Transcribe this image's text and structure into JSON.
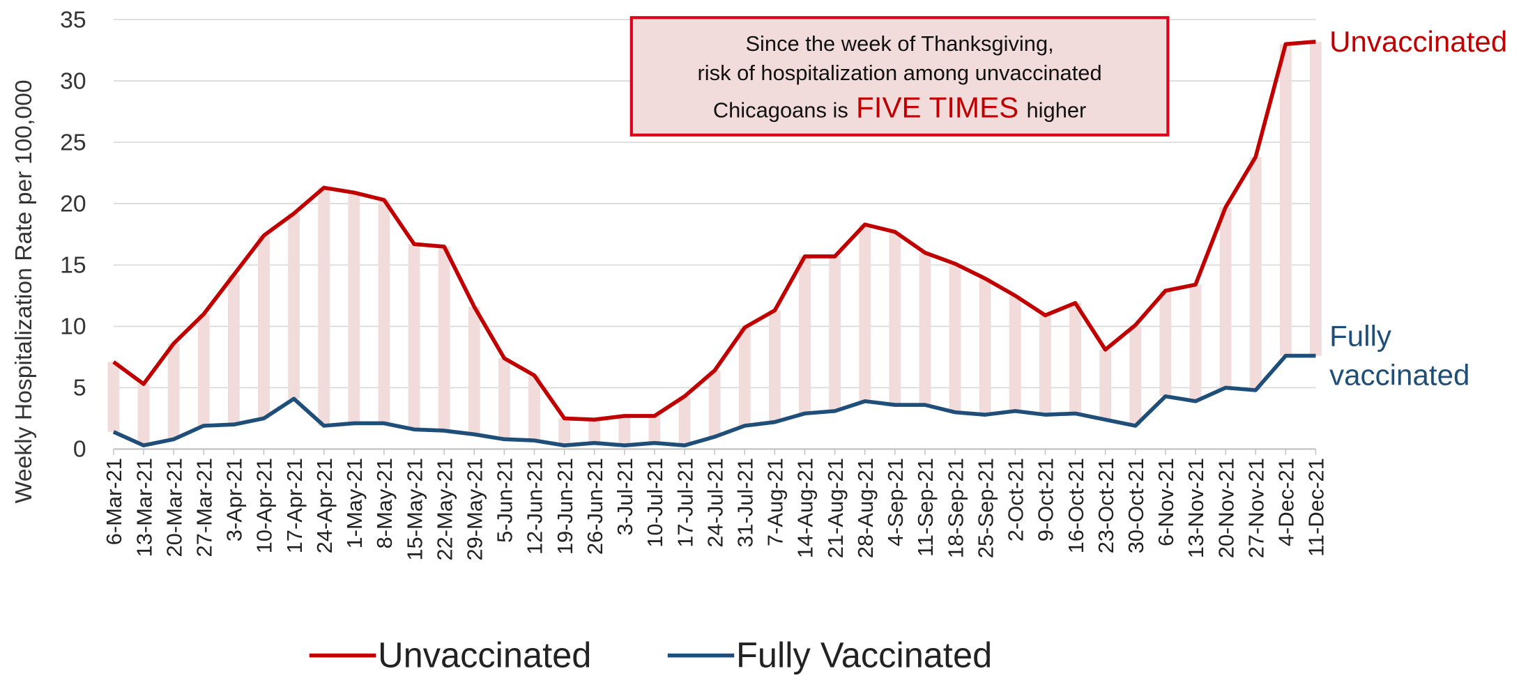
{
  "chart_data": {
    "type": "line",
    "y_axis_label": "Weekly Hospitalization Rate per 100,000",
    "categories": [
      "6-Mar-21",
      "13-Mar-21",
      "20-Mar-21",
      "27-Mar-21",
      "3-Apr-21",
      "10-Apr-21",
      "17-Apr-21",
      "24-Apr-21",
      "1-May-21",
      "8-May-21",
      "15-May-21",
      "22-May-21",
      "29-May-21",
      "5-Jun-21",
      "12-Jun-21",
      "19-Jun-21",
      "26-Jun-21",
      "3-Jul-21",
      "10-Jul-21",
      "17-Jul-21",
      "24-Jul-21",
      "31-Jul-21",
      "7-Aug-21",
      "14-Aug-21",
      "21-Aug-21",
      "28-Aug-21",
      "4-Sep-21",
      "11-Sep-21",
      "18-Sep-21",
      "25-Sep-21",
      "2-Oct-21",
      "9-Oct-21",
      "16-Oct-21",
      "23-Oct-21",
      "30-Oct-21",
      "6-Nov-21",
      "13-Nov-21",
      "20-Nov-21",
      "27-Nov-21",
      "4-Dec-21",
      "11-Dec-21"
    ],
    "series": [
      {
        "name": "Unvaccinated",
        "color": "#c00000",
        "end_label_lines": [
          "Unvaccinated"
        ],
        "values": [
          7.1,
          5.3,
          8.6,
          11.0,
          14.2,
          17.4,
          19.2,
          21.3,
          20.9,
          20.3,
          16.7,
          16.5,
          11.6,
          7.4,
          6.0,
          2.5,
          2.4,
          2.7,
          2.7,
          4.3,
          6.4,
          9.9,
          11.3,
          15.7,
          15.7,
          18.3,
          17.7,
          16.0,
          15.1,
          13.9,
          12.5,
          10.9,
          11.9,
          8.1,
          10.1,
          12.9,
          13.4,
          19.7,
          23.8,
          33.0,
          33.2
        ]
      },
      {
        "name": "Fully Vaccinated",
        "color": "#1f4e79",
        "end_label_lines": [
          "Fully",
          "vaccinated"
        ],
        "values": [
          1.4,
          0.3,
          0.8,
          1.9,
          2.0,
          2.5,
          4.1,
          1.9,
          2.1,
          2.1,
          1.6,
          1.5,
          1.2,
          0.8,
          0.7,
          0.3,
          0.5,
          0.3,
          0.5,
          0.3,
          1.0,
          1.9,
          2.2,
          2.9,
          3.1,
          3.9,
          3.6,
          3.6,
          3.0,
          2.8,
          3.1,
          2.8,
          2.9,
          2.4,
          1.9,
          4.3,
          3.9,
          5.0,
          4.8,
          7.6,
          7.6
        ]
      }
    ],
    "band_color": "#f2dcdb",
    "annotation": {
      "lines": [
        "Since the week of Thanksgiving,",
        "risk of hospitalization among unvaccinated"
      ],
      "last_line": [
        "Chicagoans is",
        "FIVE TIMES",
        "higher"
      ]
    },
    "ylim": [
      0,
      35
    ],
    "yticks": [
      0,
      5,
      10,
      15,
      20,
      25,
      30,
      35
    ],
    "grid": true,
    "legend": "bottom"
  }
}
